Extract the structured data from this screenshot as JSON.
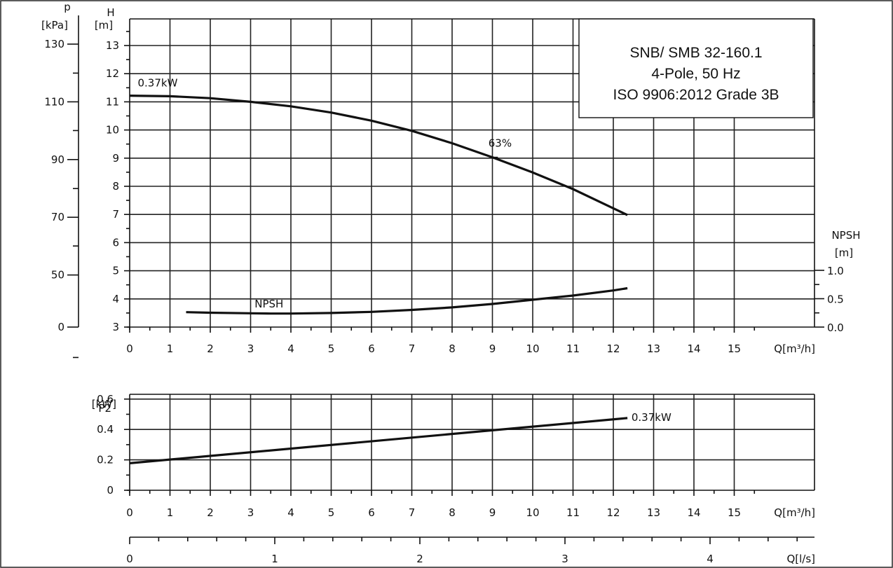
{
  "info_box": {
    "line1": "SNB/ SMB 32-160.1",
    "line2": "4-Pole, 50 Hz",
    "line3": "ISO 9906:2012 Grade 3B"
  },
  "chart_data": [
    {
      "type": "line",
      "panel": "head",
      "x_axis": {
        "label": "Q[m³/h]",
        "range": [
          0,
          17
        ],
        "ticks": [
          0,
          1,
          2,
          3,
          4,
          5,
          6,
          7,
          8,
          9,
          10,
          11,
          12,
          13,
          14,
          15
        ]
      },
      "y_axis_left": {
        "label": "H",
        "unit": "[m]",
        "range": [
          3,
          13.8
        ],
        "ticks": [
          3,
          4,
          5,
          6,
          7,
          8,
          9,
          10,
          11,
          12,
          13
        ]
      },
      "y_axis_pressure": {
        "label": "p",
        "unit": "[kPa]",
        "ticks": [
          0,
          50,
          70,
          90,
          110,
          130
        ],
        "tick_H": [
          3,
          4.85,
          6.9,
          8.95,
          11.0,
          13.05
        ]
      },
      "y_axis_right": {
        "label": "NPSH",
        "unit": "[m]",
        "ticks": [
          "0.0",
          "0.5",
          "1.0"
        ],
        "range": [
          0,
          1.0
        ]
      },
      "grid": true,
      "series": [
        {
          "name": "0.37kW",
          "values": [
            [
              0,
              11.22
            ],
            [
              1,
              11.2
            ],
            [
              2,
              11.13
            ],
            [
              3,
              11.0
            ],
            [
              4,
              10.84
            ],
            [
              5,
              10.62
            ],
            [
              6,
              10.33
            ],
            [
              7,
              9.97
            ],
            [
              8,
              9.53
            ],
            [
              9,
              9.03
            ],
            [
              10,
              8.49
            ],
            [
              11,
              7.9
            ],
            [
              12,
              7.22
            ],
            [
              12.35,
              6.98
            ]
          ]
        },
        {
          "name": "NPSH",
          "axis": "right",
          "values": [
            [
              1.4,
              3.53
            ],
            [
              2,
              3.51
            ],
            [
              3,
              3.49
            ],
            [
              3.5,
              3.48
            ],
            [
              4,
              3.48
            ],
            [
              5,
              3.5
            ],
            [
              6,
              3.54
            ],
            [
              7,
              3.61
            ],
            [
              8,
              3.7
            ],
            [
              9,
              3.82
            ],
            [
              10,
              3.97
            ],
            [
              11,
              4.12
            ],
            [
              12,
              4.3
            ],
            [
              12.35,
              4.38
            ]
          ]
        }
      ],
      "annotations": [
        {
          "text": "0.37kW",
          "x": 0.2,
          "y": 11.55
        },
        {
          "text": "NPSH",
          "x": 3.1,
          "y": 3.7
        },
        {
          "text": "63%",
          "x": 8.9,
          "y": 9.4,
          "marker": [
            9.05,
            9.03
          ]
        }
      ]
    },
    {
      "type": "line",
      "panel": "power",
      "x_axis": {
        "label": "Q[m³/h]",
        "range": [
          0,
          17
        ],
        "ticks": [
          0,
          1,
          2,
          3,
          4,
          5,
          6,
          7,
          8,
          9,
          10,
          11,
          12,
          13,
          14,
          15
        ]
      },
      "x_axis_secondary": {
        "label": "Q[l/s]",
        "ticks": [
          0,
          1,
          2,
          3,
          4
        ]
      },
      "y_axis_left": {
        "label": "P2",
        "unit": "[kW]",
        "range": [
          0,
          0.72
        ],
        "ticks": [
          "0",
          "0.2",
          "0.4",
          "0.6"
        ]
      },
      "grid": true,
      "series": [
        {
          "name": "0.37kW",
          "values": [
            [
              0,
              0.178
            ],
            [
              12.35,
              0.475
            ]
          ]
        }
      ],
      "annotations": [
        {
          "text": "0.37kW",
          "x": 12.45,
          "y": 0.48
        }
      ]
    }
  ]
}
